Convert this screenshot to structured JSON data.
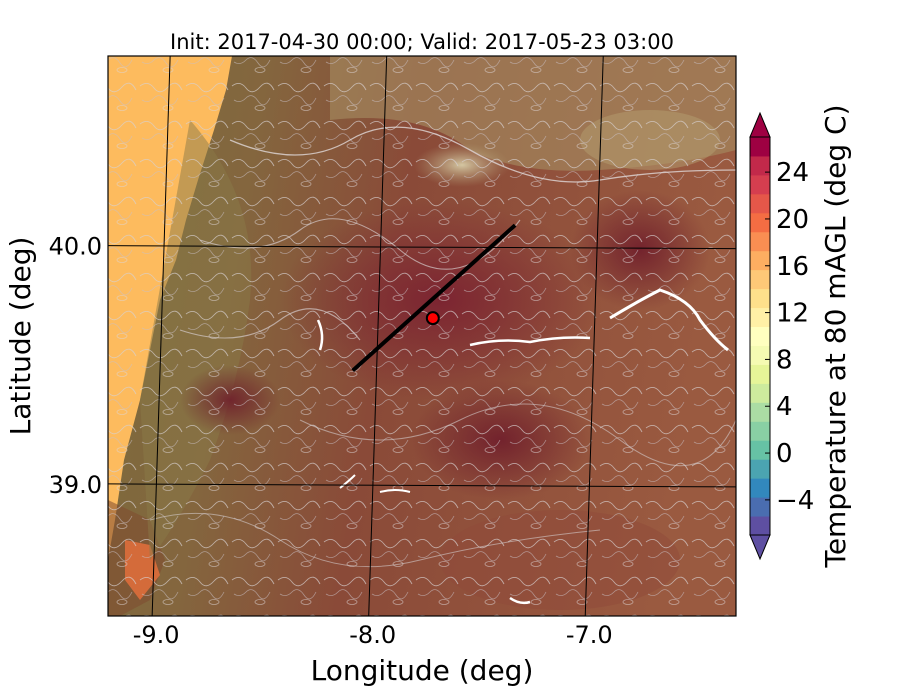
{
  "title": "Init: 2017-04-30 00:00; Valid: 2017-05-23 03:00",
  "xlabel": "Longitude (deg)",
  "ylabel": "Latitude (deg)",
  "colorbar": {
    "label": "Temperature at 80 mAGL (deg C)",
    "ticks": [
      "−4",
      "0",
      "4",
      "8",
      "12",
      "16",
      "20",
      "24"
    ],
    "tick_values": [
      -4,
      0,
      4,
      8,
      12,
      16,
      20,
      24
    ],
    "range": [
      -7,
      27
    ],
    "colors": [
      "#5e4fa2",
      "#4a6db0",
      "#3288bd",
      "#4ba4b1",
      "#66c2a5",
      "#89d0a4",
      "#abdda4",
      "#cdeb9d",
      "#e6f598",
      "#f5fbb2",
      "#ffffbf",
      "#fff0a6",
      "#fee08b",
      "#fec877",
      "#fdae61",
      "#f98e52",
      "#f46d43",
      "#e55749",
      "#d53e4f",
      "#c2294a",
      "#9e0142"
    ]
  },
  "chart_data": {
    "type": "heatmap",
    "title": "Init: 2017-04-30 00:00; Valid: 2017-05-23 03:00",
    "xlabel": "Longitude (deg)",
    "ylabel": "Latitude (deg)",
    "xlim": [
      -9.25,
      -6.35
    ],
    "ylim": [
      38.45,
      40.8
    ],
    "xticks": [
      -9.0,
      -8.0,
      -7.0
    ],
    "xtick_labels": [
      "-9.0",
      "-8.0",
      "-7.0"
    ],
    "yticks": [
      39.0,
      40.0
    ],
    "ytick_labels": [
      "39.0",
      "40.0"
    ],
    "grid": true,
    "cross_section_line": {
      "start": [
        -8.12,
        39.48
      ],
      "end": [
        -7.37,
        40.09
      ]
    },
    "marker_point": [
      -7.75,
      39.7
    ],
    "marker_color": "#ff0000",
    "line_color": "#000000"
  }
}
